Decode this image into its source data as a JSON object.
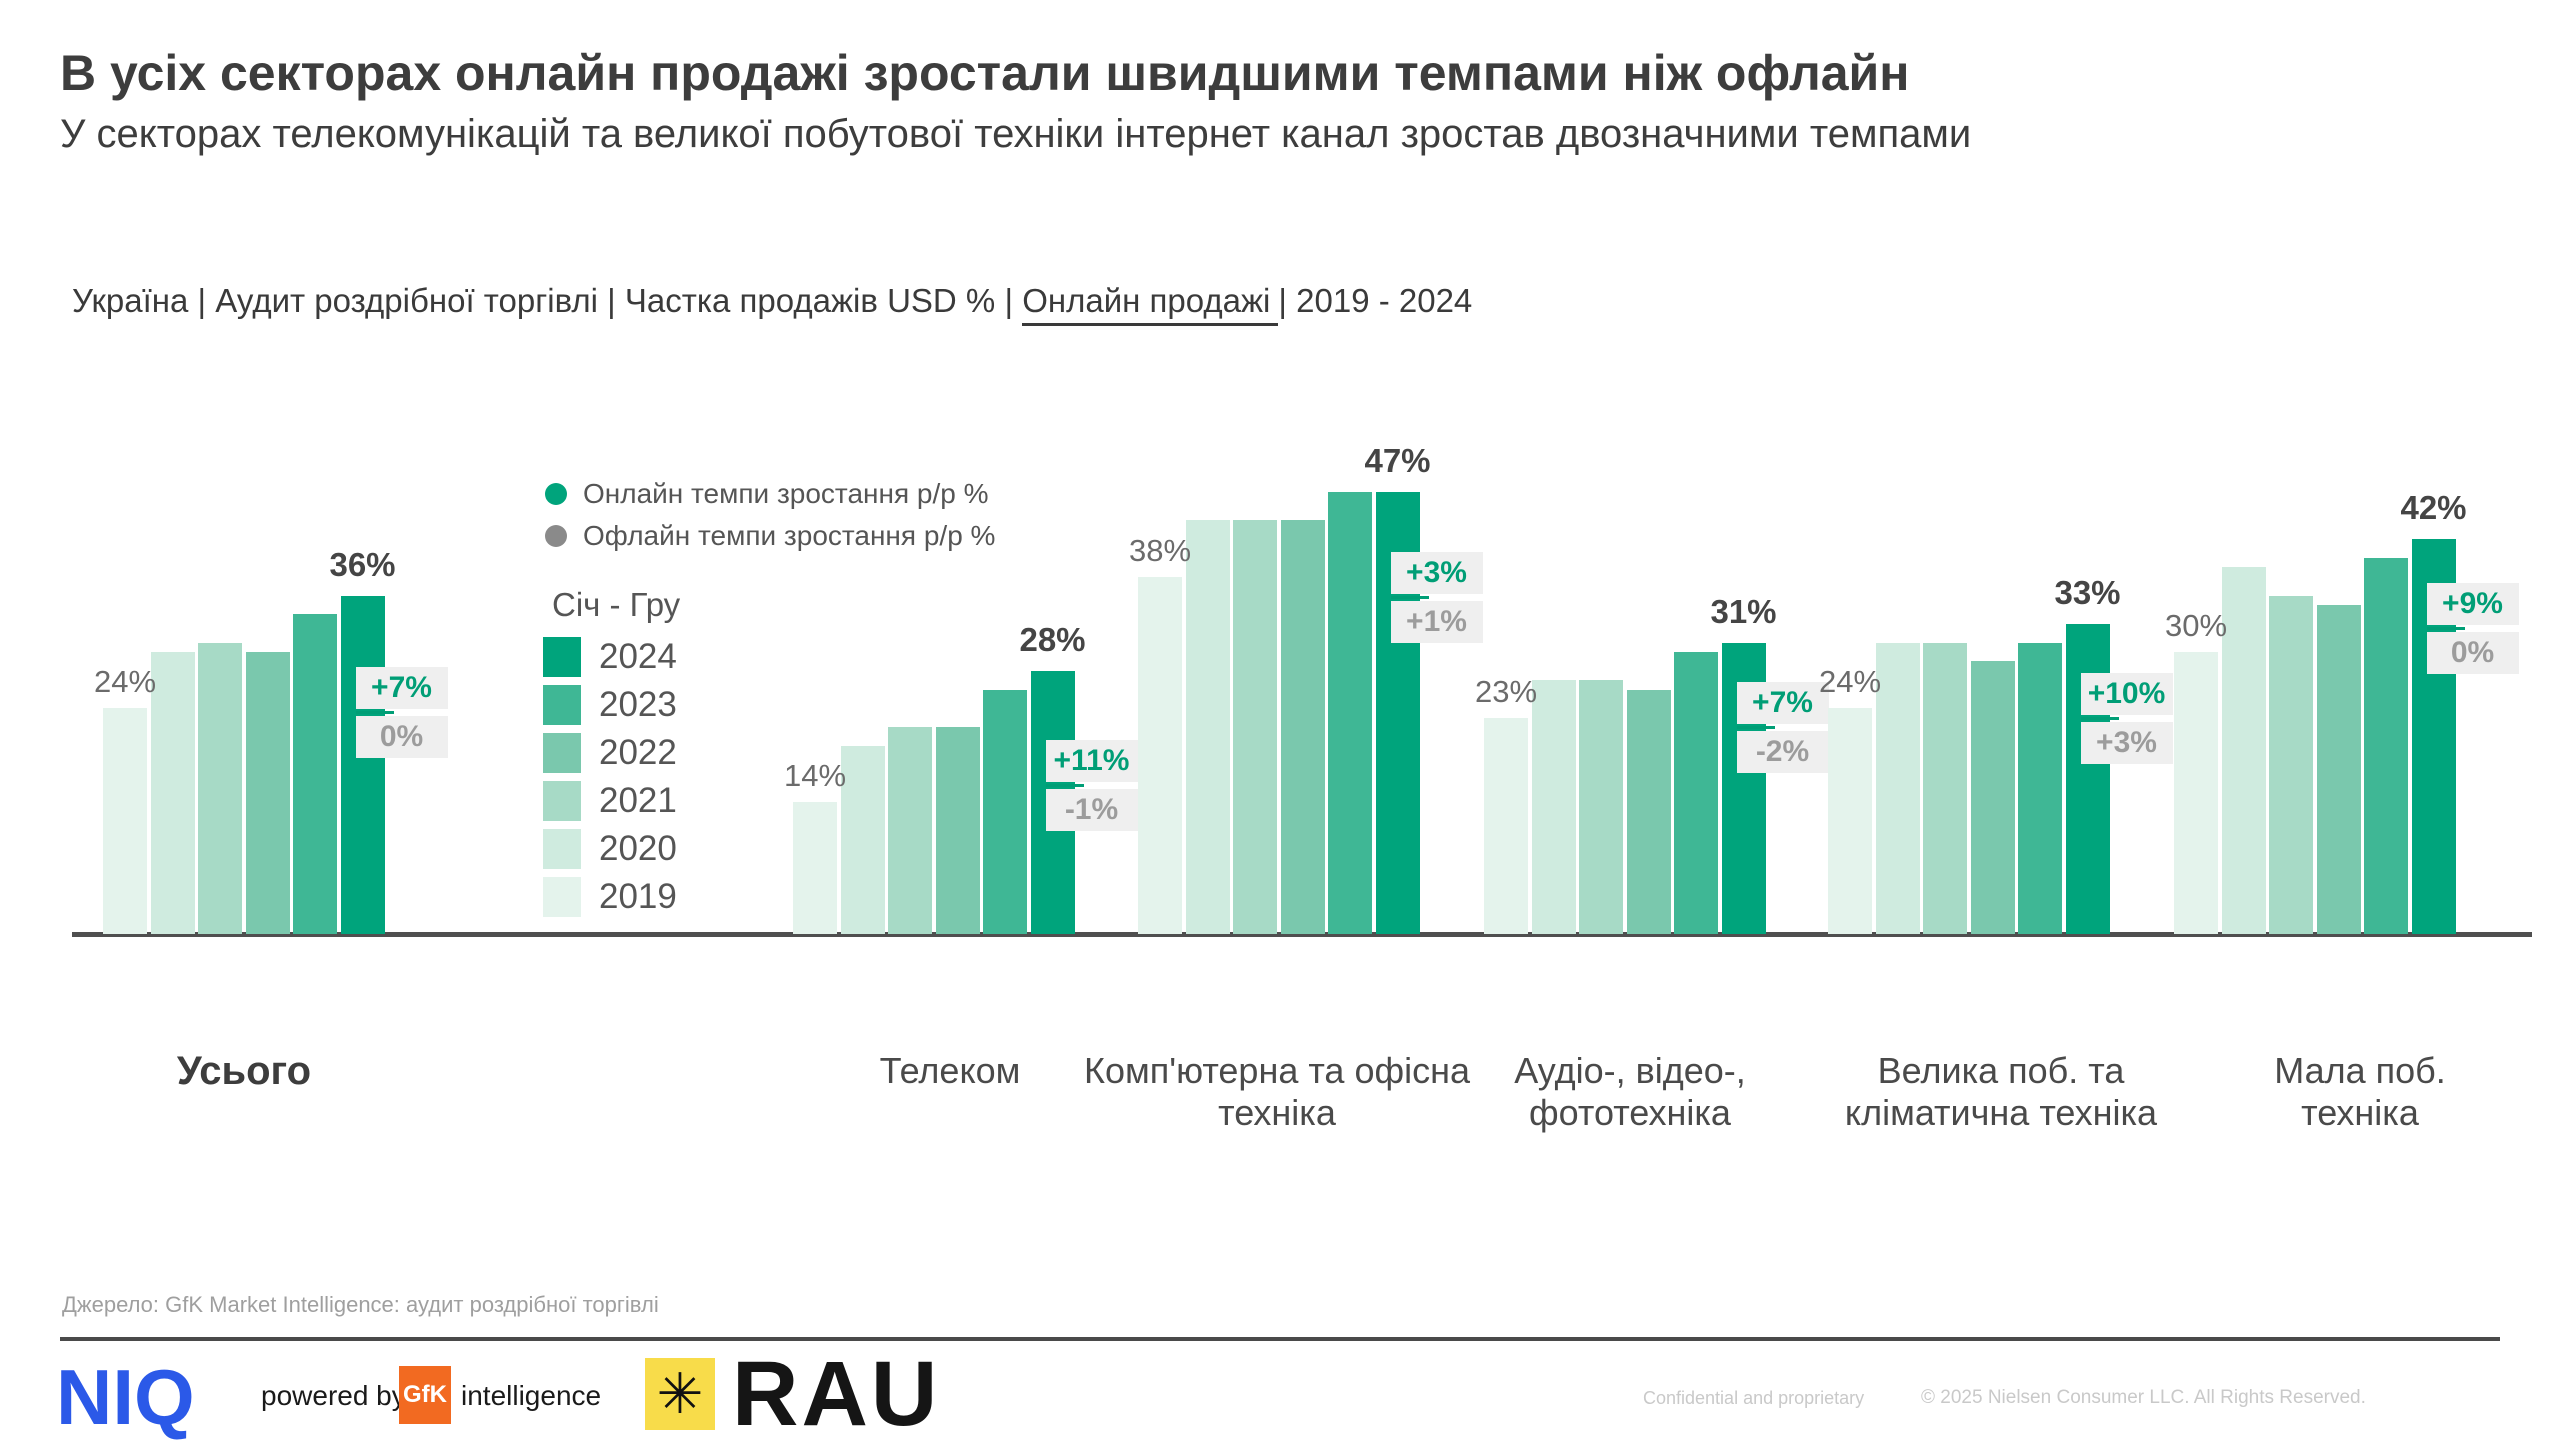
{
  "header": {
    "title": "В усіх секторах онлайн продажі зростали швидшими темпами ніж офлайн",
    "subtitle": "У секторах телекомунікацій та великої побутової техніки інтернет канал зростав двозначними темпами"
  },
  "filters": {
    "prefix": "Україна | Аудит роздрібної торгівлі | Частка продажів USD % | ",
    "underlined": "Онлайн продажі",
    "suffix": "| 2019 - 2024"
  },
  "legend": {
    "online_label": "Онлайн темпи зростання р/р %",
    "offline_label": "Офлайн темпи зростання р/р %",
    "period_label": "Січ - Гру",
    "years": [
      "2024",
      "2023",
      "2022",
      "2021",
      "2020",
      "2019"
    ]
  },
  "chart_data": {
    "type": "bar",
    "title": "Частка онлайн продажів USD %, 2019 - 2024",
    "unit": "%",
    "ylim": [
      0,
      50
    ],
    "gridlines": false,
    "legend_position": "inside-upper-left",
    "years": [
      2019,
      2020,
      2021,
      2022,
      2023,
      2024
    ],
    "year_colors": {
      "2019": "#e4f3ec",
      "2020": "#cfebdf",
      "2021": "#a7dac6",
      "2022": "#7ac8ad",
      "2023": "#3fb795",
      "2024": "#00a47c"
    },
    "accent_green": "#009e76",
    "accent_gray": "#9c9c9c",
    "groups": [
      {
        "category": "Усього",
        "values": [
          24,
          30,
          31,
          30,
          34,
          36
        ],
        "online_growth": "+7%",
        "offline_growth": "0%"
      },
      {
        "category": "Телеком",
        "values": [
          14,
          20,
          22,
          22,
          26,
          28
        ],
        "online_growth": "+11%",
        "offline_growth": "-1%"
      },
      {
        "category": "Комп'ютерна та офісна техніка",
        "values": [
          38,
          44,
          44,
          44,
          47,
          47
        ],
        "online_growth": "+3%",
        "offline_growth": "+1%"
      },
      {
        "category": "Аудіо-, відео-, фототехніка",
        "values": [
          23,
          27,
          27,
          26,
          30,
          31
        ],
        "online_growth": "+7%",
        "offline_growth": "-2%"
      },
      {
        "category": "Велика поб. та кліматична техніка",
        "values": [
          24,
          31,
          31,
          29,
          31,
          33
        ],
        "online_growth": "+10%",
        "offline_growth": "+3%"
      },
      {
        "category": "Мала поб. техніка",
        "values": [
          30,
          39,
          36,
          35,
          40,
          42
        ],
        "online_growth": "+9%",
        "offline_growth": "0%"
      }
    ]
  },
  "footer": {
    "source": "Джерело: GfK Market Intelligence: аудит роздрібної торгівлі",
    "niq": "NIQ",
    "powered_by": "powered by",
    "gfk": "GfK",
    "intelligence": "intelligence",
    "rau_star": "✳",
    "rau": "RAU",
    "confidential": "Confidential and proprietary",
    "copyright": "© 2025 Nielsen Consumer LLC. All Rights Reserved."
  }
}
